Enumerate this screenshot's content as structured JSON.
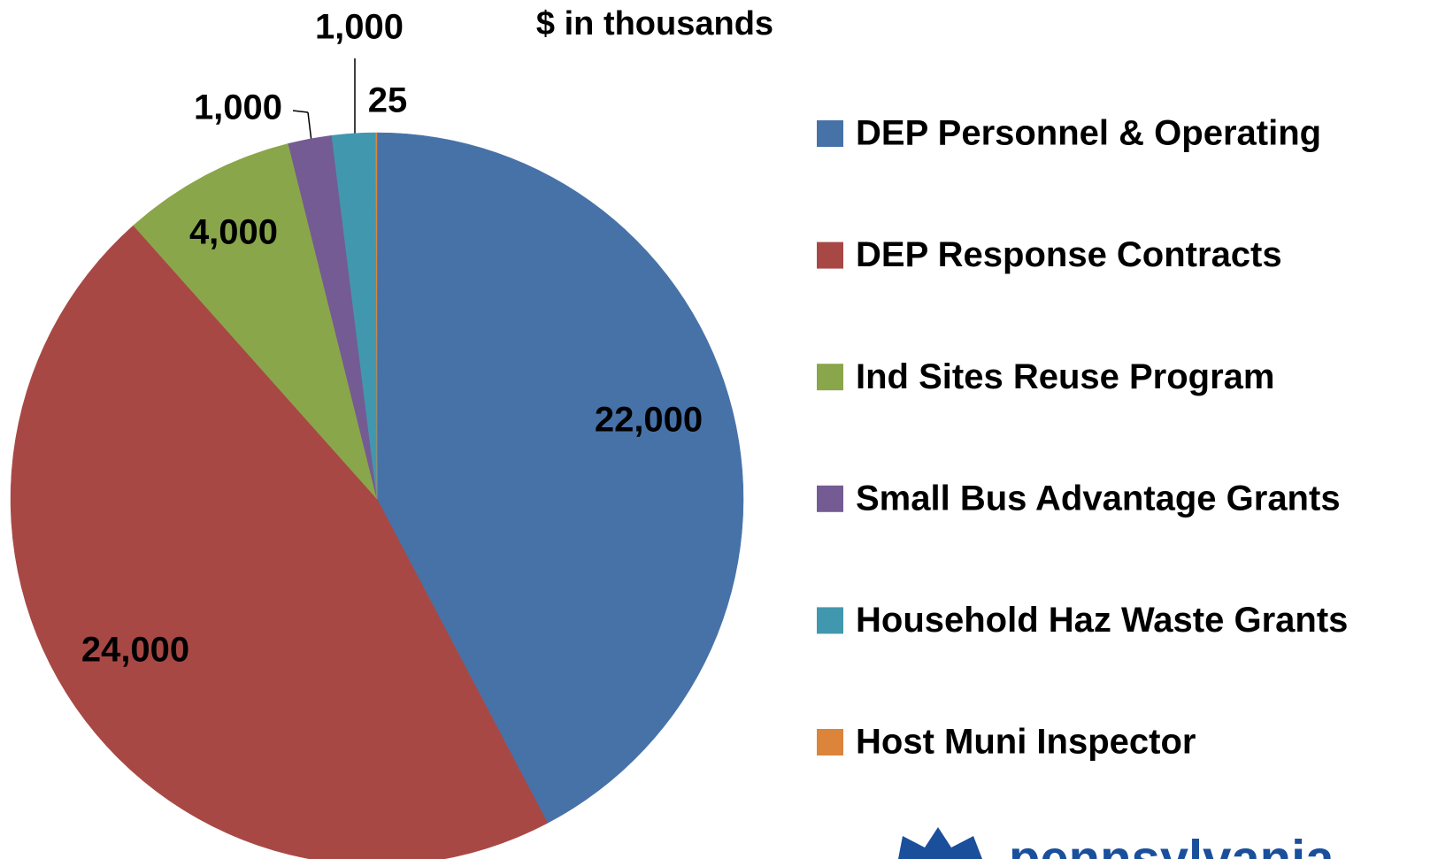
{
  "chart_data": {
    "type": "pie",
    "subtitle": "$ in thousands",
    "categories": [
      "DEP Personnel & Operating",
      "DEP Response Contracts",
      "Ind Sites Reuse Program",
      "Small Bus Advantage Grants",
      "Household Haz Waste Grants",
      "Host Muni Inspector"
    ],
    "values": [
      22000,
      24000,
      4000,
      1000,
      1000,
      25
    ],
    "value_labels": [
      "22,000",
      "24,000",
      "4,000",
      "1,000",
      "1,000",
      "25"
    ],
    "colors": [
      "#4672a8",
      "#a84845",
      "#8aa64b",
      "#745b93",
      "#4198ae",
      "#dc843a"
    ],
    "legend": "right",
    "logo_text": "pennsylvania"
  }
}
